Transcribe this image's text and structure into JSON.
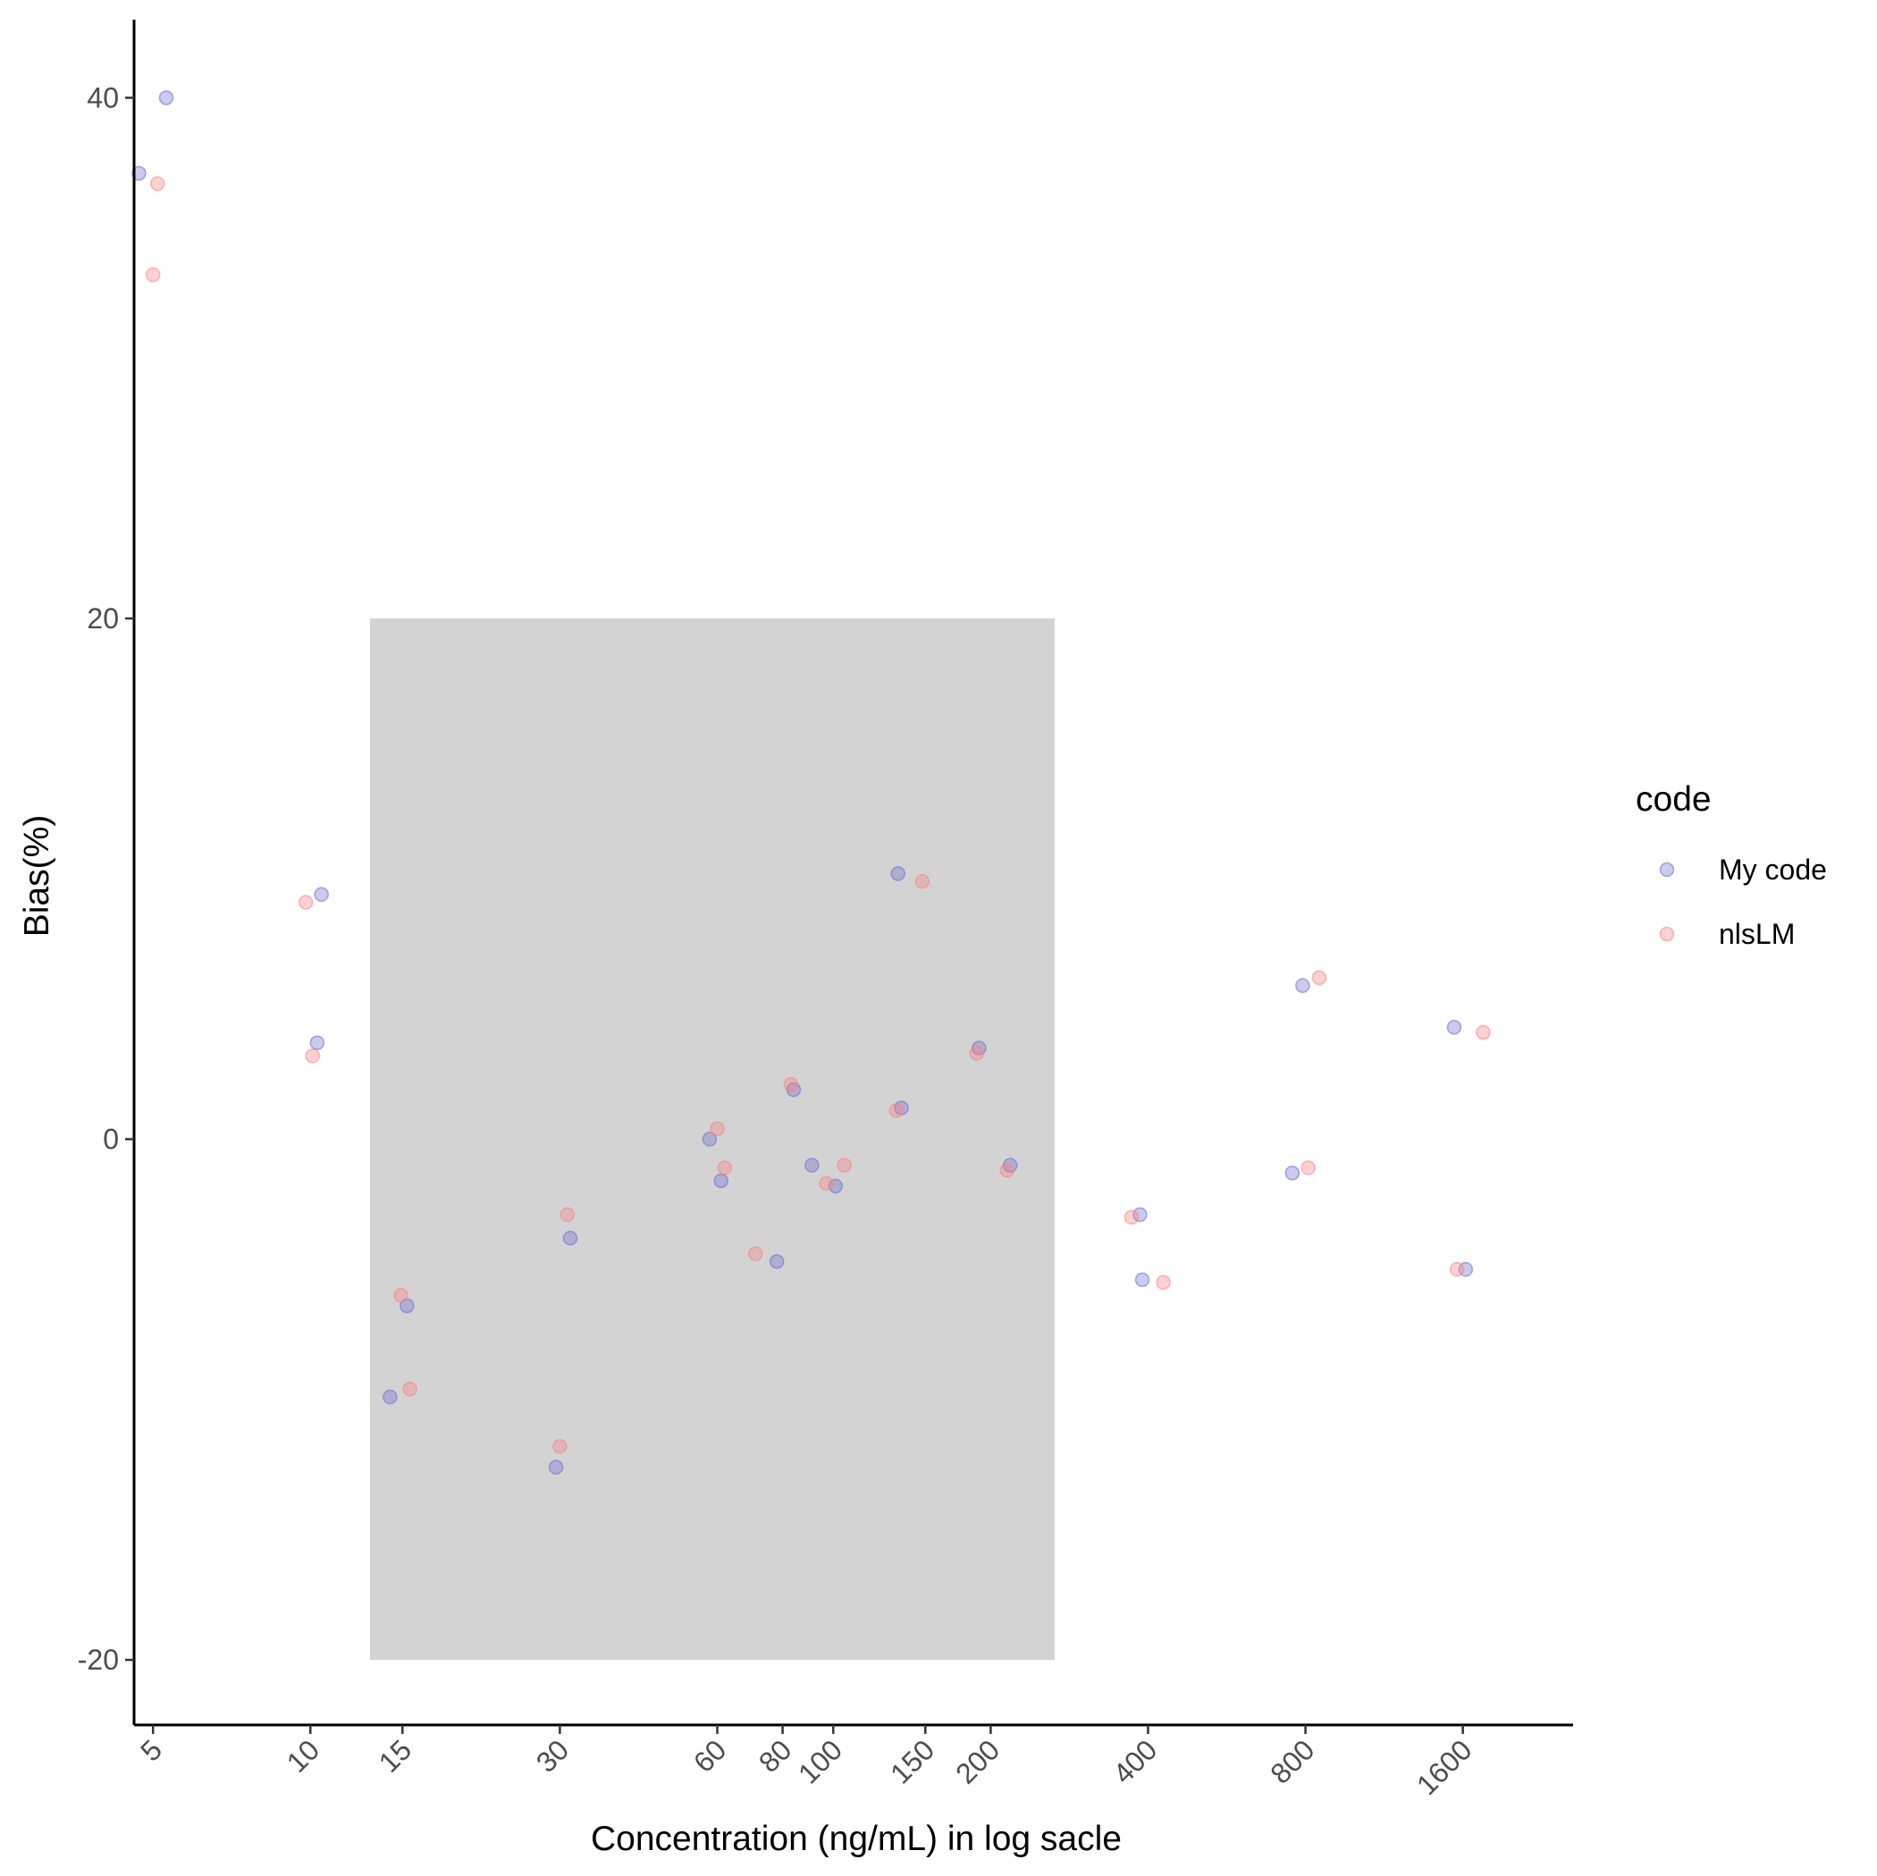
{
  "chart_data": {
    "type": "scatter",
    "xlabel": "Concentration (ng/mL) in log sacle",
    "ylabel": "Bias(%)",
    "x_scale": "log",
    "xlim": [
      4.6,
      2600
    ],
    "ylim": [
      -22.5,
      43
    ],
    "x_ticks": [
      5,
      10,
      15,
      30,
      60,
      80,
      100,
      150,
      200,
      400,
      800,
      1600
    ],
    "y_ticks": [
      -20,
      0,
      20,
      40
    ],
    "grid": false,
    "acceptance_region": {
      "x": [
        13,
        265
      ],
      "y": [
        -20,
        20
      ],
      "color": "#d3d3d3"
    },
    "legend": {
      "title": "code",
      "position": "right"
    },
    "series": [
      {
        "name": "My code",
        "color": "#6b6bd1",
        "points": [
          {
            "x": 4.7,
            "y": 37.1
          },
          {
            "x": 5.3,
            "y": 40.0
          },
          {
            "x": 10.5,
            "y": 9.4
          },
          {
            "x": 10.3,
            "y": 3.7
          },
          {
            "x": 14.2,
            "y": -9.9
          },
          {
            "x": 15.3,
            "y": -6.4
          },
          {
            "x": 29.5,
            "y": -12.6
          },
          {
            "x": 31.4,
            "y": -3.8
          },
          {
            "x": 58.0,
            "y": 0.0
          },
          {
            "x": 61.0,
            "y": -1.6
          },
          {
            "x": 78.0,
            "y": -4.7
          },
          {
            "x": 84.0,
            "y": 1.9
          },
          {
            "x": 91.0,
            "y": -1.0
          },
          {
            "x": 101.0,
            "y": -1.8
          },
          {
            "x": 133.0,
            "y": 10.2
          },
          {
            "x": 135.0,
            "y": 1.2
          },
          {
            "x": 190.0,
            "y": 3.5
          },
          {
            "x": 218.0,
            "y": -1.0
          },
          {
            "x": 386.0,
            "y": -2.9
          },
          {
            "x": 390.0,
            "y": -5.4
          },
          {
            "x": 755.0,
            "y": -1.3
          },
          {
            "x": 790.0,
            "y": 5.9
          },
          {
            "x": 1540.0,
            "y": 4.3
          },
          {
            "x": 1620.0,
            "y": -5.0
          }
        ]
      },
      {
        "name": "nlsLM",
        "color": "#ff7f7f",
        "points": [
          {
            "x": 5.1,
            "y": 36.7
          },
          {
            "x": 5.0,
            "y": 33.2
          },
          {
            "x": 9.8,
            "y": 9.1
          },
          {
            "x": 10.1,
            "y": 3.2
          },
          {
            "x": 14.9,
            "y": -6.0
          },
          {
            "x": 15.5,
            "y": -9.6
          },
          {
            "x": 30.0,
            "y": -11.8
          },
          {
            "x": 31.0,
            "y": -2.9
          },
          {
            "x": 60.0,
            "y": 0.4
          },
          {
            "x": 62.0,
            "y": -1.1
          },
          {
            "x": 71.0,
            "y": -4.4
          },
          {
            "x": 83.0,
            "y": 2.1
          },
          {
            "x": 97.0,
            "y": -1.7
          },
          {
            "x": 105.0,
            "y": -1.0
          },
          {
            "x": 132.0,
            "y": 1.1
          },
          {
            "x": 148.0,
            "y": 9.9
          },
          {
            "x": 188.0,
            "y": 3.3
          },
          {
            "x": 215.0,
            "y": -1.2
          },
          {
            "x": 372.0,
            "y": -3.0
          },
          {
            "x": 428.0,
            "y": -5.5
          },
          {
            "x": 810.0,
            "y": -1.1
          },
          {
            "x": 850.0,
            "y": 6.2
          },
          {
            "x": 1560.0,
            "y": -5.0
          },
          {
            "x": 1750.0,
            "y": 4.1
          }
        ]
      }
    ]
  }
}
